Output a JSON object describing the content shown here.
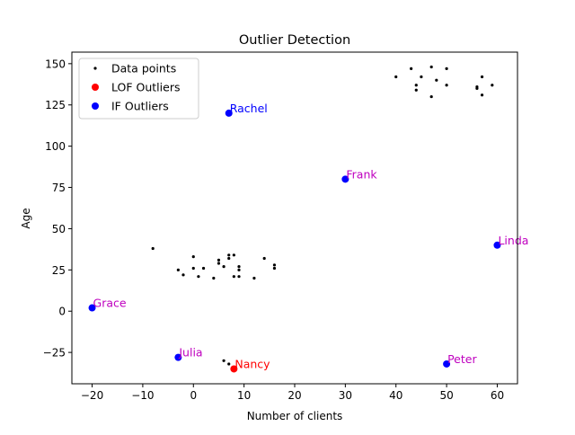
{
  "chart_data": {
    "type": "scatter",
    "title": "Outlier Detection",
    "xlabel": "Number of clients",
    "ylabel": "Age",
    "xlim": [
      -24,
      64
    ],
    "ylim": [
      -44,
      157
    ],
    "xticks": [
      -20,
      -10,
      0,
      10,
      20,
      30,
      40,
      50,
      60
    ],
    "yticks": [
      -25,
      0,
      25,
      50,
      75,
      100,
      125,
      150
    ],
    "grid": false,
    "legend": {
      "placement": "top-left",
      "entries": [
        {
          "label": "Data points",
          "color": "#000000",
          "marker": "small-dot"
        },
        {
          "label": "LOF Outliers",
          "color": "#ff0000",
          "marker": "dot"
        },
        {
          "label": "IF Outliers",
          "color": "#0000ff",
          "marker": "dot"
        }
      ]
    },
    "series": [
      {
        "name": "Data points",
        "color": "#000000",
        "points": [
          [
            40,
            142
          ],
          [
            43,
            147
          ],
          [
            44,
            137
          ],
          [
            44,
            134
          ],
          [
            45,
            142
          ],
          [
            47,
            148
          ],
          [
            47,
            130
          ],
          [
            48,
            140
          ],
          [
            50,
            147
          ],
          [
            50,
            137
          ],
          [
            56,
            136
          ],
          [
            56,
            135
          ],
          [
            57,
            142
          ],
          [
            57,
            131
          ],
          [
            59,
            137
          ],
          [
            -8,
            38
          ],
          [
            -3,
            25
          ],
          [
            -2,
            22
          ],
          [
            0,
            33
          ],
          [
            0,
            26
          ],
          [
            1,
            21
          ],
          [
            2,
            26
          ],
          [
            4,
            20
          ],
          [
            5,
            31
          ],
          [
            5,
            29
          ],
          [
            6,
            27
          ],
          [
            7,
            34
          ],
          [
            7,
            32
          ],
          [
            8,
            34
          ],
          [
            8,
            21
          ],
          [
            9,
            27
          ],
          [
            9,
            25
          ],
          [
            9,
            21
          ],
          [
            12,
            20
          ],
          [
            14,
            32
          ],
          [
            16,
            28
          ],
          [
            16,
            26
          ],
          [
            6,
            -30
          ],
          [
            7,
            -32
          ]
        ]
      },
      {
        "name": "IF Outliers",
        "color": "#0000ff",
        "points": [
          [
            7,
            120
          ],
          [
            30,
            80
          ],
          [
            60,
            40
          ],
          [
            -20,
            2
          ],
          [
            -3,
            -28
          ],
          [
            50,
            -32
          ]
        ]
      },
      {
        "name": "LOF Outliers",
        "color": "#ff0000",
        "points": [
          [
            8,
            -35
          ]
        ]
      }
    ],
    "annotations": [
      {
        "text": "Rachel",
        "x": 7,
        "y": 120,
        "color": "#0000ff"
      },
      {
        "text": "Frank",
        "x": 30,
        "y": 80,
        "color": "#bf00bf"
      },
      {
        "text": "Linda",
        "x": 60,
        "y": 40,
        "color": "#bf00bf"
      },
      {
        "text": "Grace",
        "x": -20,
        "y": 2,
        "color": "#bf00bf"
      },
      {
        "text": "Julia",
        "x": -3,
        "y": -28,
        "color": "#bf00bf"
      },
      {
        "text": "Peter",
        "x": 50,
        "y": -32,
        "color": "#bf00bf"
      },
      {
        "text": "Nancy",
        "x": 8,
        "y": -35,
        "color": "#ff0000"
      }
    ]
  }
}
